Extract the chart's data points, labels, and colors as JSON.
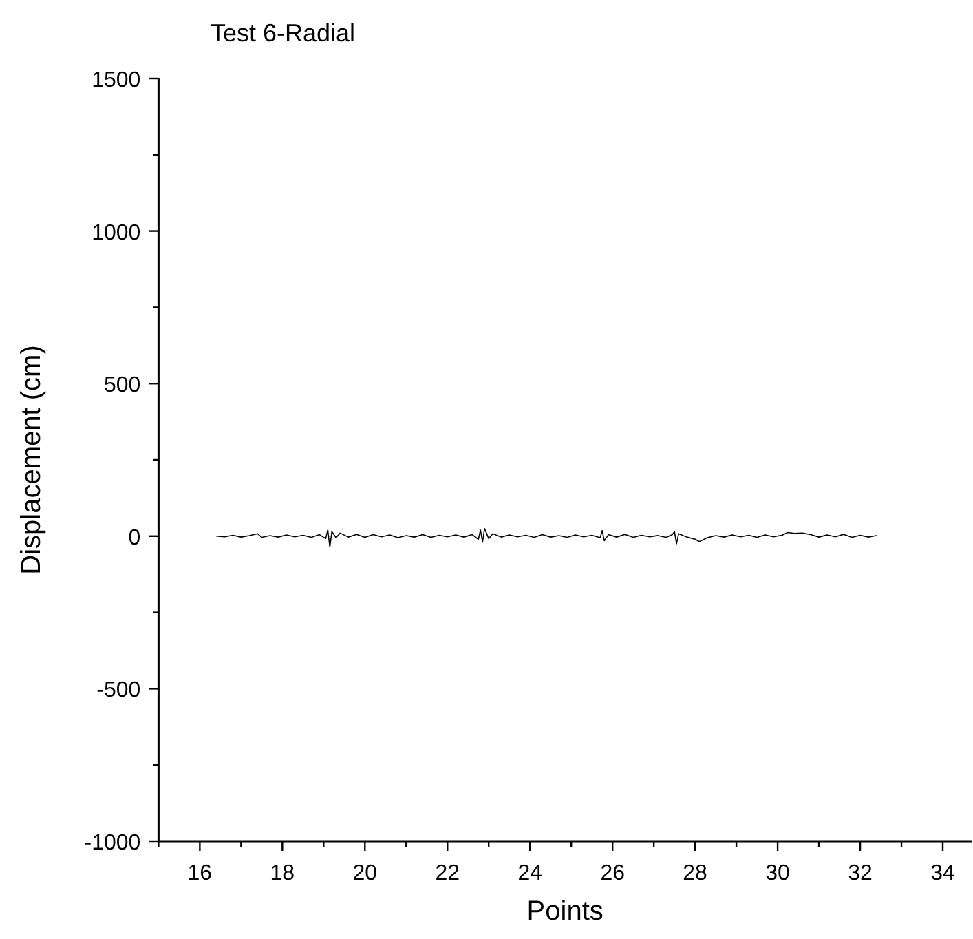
{
  "chart_data": {
    "type": "line",
    "title": "Test 6-Radial",
    "xlabel": "Points",
    "ylabel": "Displacement (cm)",
    "xlim": [
      15,
      34.7
    ],
    "ylim": [
      -1000,
      1500
    ],
    "xticks": [
      {
        "value": 15,
        "label": null
      },
      16,
      {
        "value": 17,
        "label": null
      },
      18,
      {
        "value": 19,
        "label": null
      },
      20,
      {
        "value": 21,
        "label": null
      },
      22,
      {
        "value": 23,
        "label": null
      },
      24,
      {
        "value": 25,
        "label": null
      },
      26,
      {
        "value": 27,
        "label": null
      },
      28,
      {
        "value": 29,
        "label": null
      },
      30,
      {
        "value": 31,
        "label": null
      },
      32,
      {
        "value": 33,
        "label": null
      },
      34
    ],
    "yticks": [
      -1000,
      {
        "value": -750,
        "label": null
      },
      -500,
      {
        "value": -250,
        "label": null
      },
      0,
      {
        "value": 250,
        "label": null
      },
      500,
      {
        "value": 750,
        "label": null
      },
      1000,
      {
        "value": 1250,
        "label": null
      },
      1500
    ],
    "grid": false,
    "marker": "none",
    "line_style": "solid",
    "series": [
      {
        "color": "#000000",
        "x": [
          16.4,
          16.6,
          16.8,
          17.0,
          17.2,
          17.4,
          17.5,
          17.7,
          17.9,
          18.1,
          18.3,
          18.5,
          18.7,
          18.9,
          19.05,
          19.1,
          19.15,
          19.2,
          19.3,
          19.4,
          19.6,
          19.8,
          20.0,
          20.2,
          20.4,
          20.6,
          20.8,
          21.0,
          21.2,
          21.4,
          21.6,
          21.8,
          22.0,
          22.2,
          22.4,
          22.6,
          22.75,
          22.8,
          22.85,
          22.9,
          23.0,
          23.1,
          23.3,
          23.5,
          23.7,
          23.9,
          24.1,
          24.3,
          24.5,
          24.7,
          24.9,
          25.1,
          25.3,
          25.5,
          25.7,
          25.75,
          25.8,
          25.9,
          26.1,
          26.3,
          26.5,
          26.7,
          26.9,
          27.1,
          27.3,
          27.45,
          27.5,
          27.55,
          27.6,
          27.8,
          28.0,
          28.1,
          28.3,
          28.5,
          28.7,
          28.9,
          29.1,
          29.3,
          29.5,
          29.7,
          29.9,
          30.1,
          30.25,
          30.4,
          30.6,
          30.8,
          31.0,
          31.2,
          31.4,
          31.6,
          31.8,
          32.0,
          32.2,
          32.4
        ],
        "values": [
          0,
          -2,
          3,
          -3,
          2,
          8,
          -4,
          2,
          -3,
          4,
          -2,
          3,
          -4,
          5,
          -8,
          20,
          -35,
          15,
          -5,
          10,
          -3,
          6,
          -4,
          5,
          -2,
          4,
          -5,
          2,
          -3,
          5,
          -4,
          3,
          -2,
          4,
          -3,
          5,
          -10,
          20,
          -20,
          25,
          -8,
          8,
          -3,
          4,
          -2,
          3,
          -4,
          5,
          -3,
          2,
          -4,
          4,
          -2,
          3,
          -5,
          18,
          -15,
          5,
          -3,
          6,
          -4,
          3,
          -2,
          2,
          -4,
          5,
          15,
          -25,
          8,
          -3,
          -10,
          -18,
          -5,
          2,
          -3,
          4,
          -2,
          3,
          -4,
          4,
          -2,
          3,
          12,
          9,
          10,
          5,
          -3,
          4,
          -2,
          6,
          -4,
          3,
          -3,
          2
        ]
      }
    ]
  }
}
